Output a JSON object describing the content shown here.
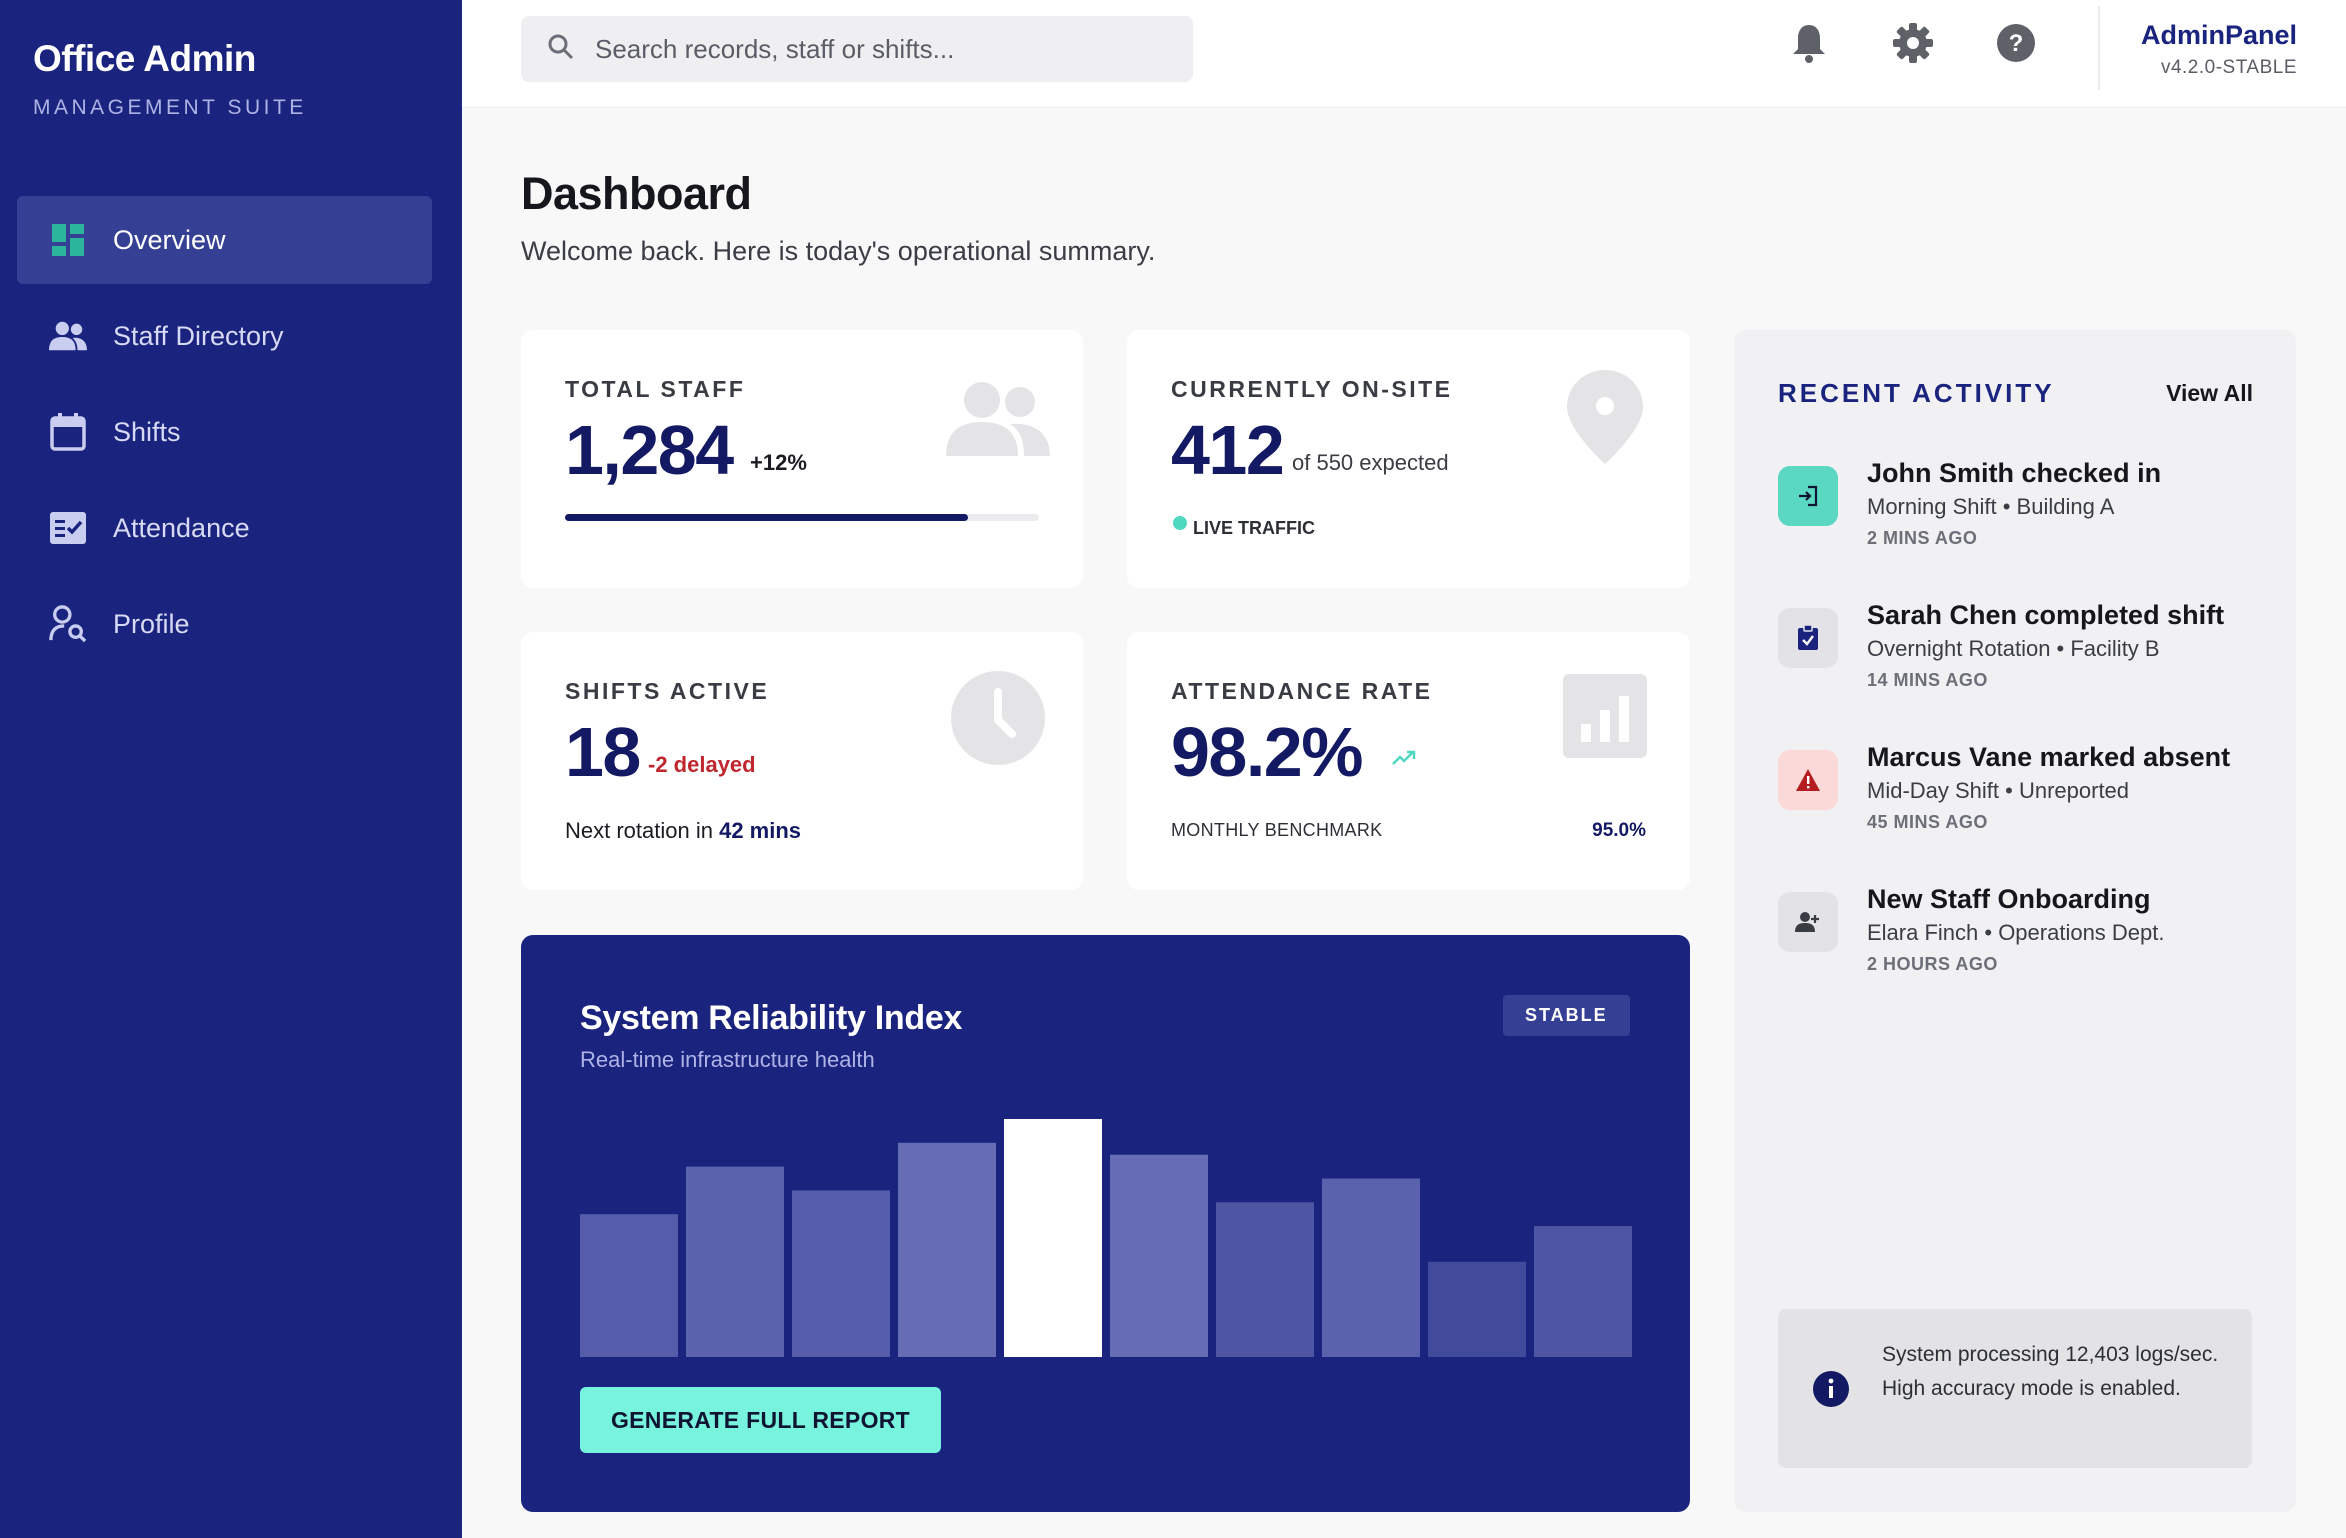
{
  "brand": {
    "title": "Office Admin",
    "subtitle": "MANAGEMENT SUITE"
  },
  "sidebar": {
    "items": [
      {
        "label": "Overview",
        "icon": "dashboard-icon",
        "active": true
      },
      {
        "label": "Staff Directory",
        "icon": "people-icon",
        "active": false
      },
      {
        "label": "Shifts",
        "icon": "calendar-icon",
        "active": false
      },
      {
        "label": "Attendance",
        "icon": "checklist-icon",
        "active": false
      },
      {
        "label": "Profile",
        "icon": "person-search-icon",
        "active": false
      }
    ]
  },
  "header": {
    "search_placeholder": "Search records, staff or shifts...",
    "icons": [
      "bell-icon",
      "gear-icon",
      "help-icon"
    ],
    "user_name": "AdminPanel",
    "version": "v4.2.0-STABLE"
  },
  "page": {
    "title": "Dashboard",
    "subtitle": "Welcome back. Here is today's operational summary."
  },
  "stats": {
    "total_staff": {
      "label": "TOTAL STAFF",
      "value": "1,284",
      "change": "+12%",
      "progress": 0.85
    },
    "on_site": {
      "label": "CURRENTLY ON-SITE",
      "value": "412",
      "note": "of 550 expected",
      "live_label": "LIVE TRAFFIC"
    },
    "shifts": {
      "label": "SHIFTS ACTIVE",
      "value": "18",
      "delayed": "-2 delayed",
      "rotation_prefix": "Next rotation in",
      "rotation_value": "42 mins"
    },
    "attendance": {
      "label": "ATTENDANCE RATE",
      "value": "98.2%",
      "benchmark_label": "MONTHLY BENCHMARK",
      "benchmark_value": "95.0%"
    }
  },
  "reliability": {
    "title": "System Reliability Index",
    "subtitle": "Real-time infrastructure health",
    "badge": "STABLE",
    "button": "GENERATE FULL REPORT",
    "bars": [
      0.6,
      0.8,
      0.7,
      0.9,
      1.0,
      0.85,
      0.65,
      0.75,
      0.4,
      0.55
    ],
    "bar_opacity": [
      0.25,
      0.3,
      0.25,
      0.4,
      1.0,
      0.4,
      0.2,
      0.3,
      0.1,
      0.2
    ],
    "colors": {
      "bg": "#1a237e",
      "accent": "#78f3dd"
    }
  },
  "activity": {
    "title": "RECENT ACTIVITY",
    "view_all": "View All",
    "items": [
      {
        "name": "John Smith checked in",
        "meta": "Morning Shift • Building A",
        "time": "2 MINS AGO",
        "icon": "login-icon",
        "tone": "teal"
      },
      {
        "name": "Sarah Chen completed shift",
        "meta": "Overnight Rotation • Facility B",
        "time": "14 MINS AGO",
        "icon": "clipboard-check-icon",
        "tone": "navy"
      },
      {
        "name": "Marcus Vane marked absent",
        "meta": "Mid-Day Shift • Unreported",
        "time": "45 MINS AGO",
        "icon": "warning-icon",
        "tone": "red"
      },
      {
        "name": "New Staff Onboarding",
        "meta": "Elara Finch • Operations Dept.",
        "time": "2 HOURS AGO",
        "icon": "person-add-icon",
        "tone": "grey"
      }
    ],
    "info": "System processing 12,403 logs/sec. High accuracy mode is enabled."
  }
}
